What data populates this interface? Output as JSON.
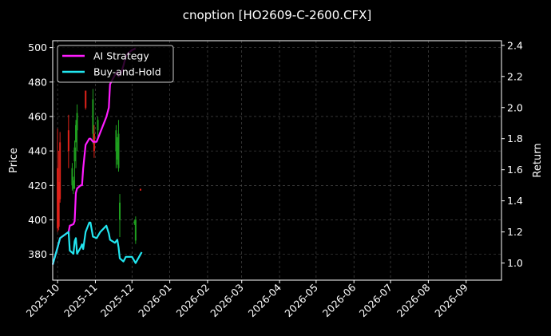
{
  "chart_data": {
    "type": "line",
    "title": "cnoption [HO2609-C-2600.CFX]",
    "ylabel": "Price",
    "y2label": "Return",
    "xlim": [
      "2025-09-27",
      "2026-09-30"
    ],
    "ylim": [
      365,
      504
    ],
    "y2lim": [
      0.89,
      2.43
    ],
    "x_ticks": [
      "2025-10",
      "2025-11",
      "2025-12",
      "2026-01",
      "2026-02",
      "2026-03",
      "2026-04",
      "2026-05",
      "2026-06",
      "2026-07",
      "2026-08",
      "2026-09"
    ],
    "y_ticks": [
      380,
      400,
      420,
      440,
      460,
      480,
      500
    ],
    "y2_ticks": [
      1.0,
      1.2,
      1.4,
      1.6,
      1.8,
      2.0,
      2.2,
      2.4
    ],
    "grid": true,
    "legend_position": "top-left",
    "colors": {
      "background": "#000000",
      "strategy": "#ff1cff",
      "benchmark": "#22e6f0",
      "up": "#1f9e1f",
      "down": "#e0221a",
      "grid": "#555555"
    },
    "candles": [
      {
        "date": "2025-10-01",
        "open": 430,
        "high": 453,
        "low": 393,
        "close": 395
      },
      {
        "date": "2025-10-02",
        "open": 422,
        "high": 440,
        "low": 394,
        "close": 396
      },
      {
        "date": "2025-10-03",
        "open": 445,
        "high": 451,
        "low": 410,
        "close": 412
      },
      {
        "date": "2025-10-10",
        "open": 452,
        "high": 461,
        "low": 430,
        "close": 440
      },
      {
        "date": "2025-10-13",
        "open": 420,
        "high": 433,
        "low": 417,
        "close": 430
      },
      {
        "date": "2025-10-14",
        "open": 418,
        "high": 425,
        "low": 415,
        "close": 423
      },
      {
        "date": "2025-10-15",
        "open": 434,
        "high": 446,
        "low": 418,
        "close": 442
      },
      {
        "date": "2025-10-16",
        "open": 445,
        "high": 458,
        "low": 430,
        "close": 455
      },
      {
        "date": "2025-10-17",
        "open": 452,
        "high": 467,
        "low": 440,
        "close": 462
      },
      {
        "date": "2025-10-24",
        "open": 475,
        "high": 475,
        "low": 464,
        "close": 465
      },
      {
        "date": "2025-10-30",
        "open": 450,
        "high": 476,
        "low": 444,
        "close": 470
      },
      {
        "date": "2025-10-31",
        "open": 450,
        "high": 455,
        "low": 436,
        "close": 440
      },
      {
        "date": "2025-11-03",
        "open": 452,
        "high": 460,
        "low": 448,
        "close": 458
      },
      {
        "date": "2025-11-18",
        "open": 440,
        "high": 455,
        "low": 430,
        "close": 452
      },
      {
        "date": "2025-11-19",
        "open": 435,
        "high": 448,
        "low": 432,
        "close": 445
      },
      {
        "date": "2025-11-20",
        "open": 430,
        "high": 458,
        "low": 428,
        "close": 450
      },
      {
        "date": "2025-11-21",
        "open": 400,
        "high": 415,
        "low": 390,
        "close": 410
      },
      {
        "date": "2025-12-03",
        "open": 398,
        "high": 400,
        "low": 397,
        "close": 399
      },
      {
        "date": "2025-12-04",
        "open": 388,
        "high": 402,
        "low": 386,
        "close": 400
      },
      {
        "date": "2025-12-08",
        "open": 418,
        "high": 418,
        "low": 417,
        "close": 417
      }
    ],
    "series": [
      {
        "name": "AI Strategy",
        "color": "#ff1cff",
        "points": [
          [
            "2025-09-27",
            0.99
          ],
          [
            "2025-10-01",
            1.1
          ],
          [
            "2025-10-03",
            1.16
          ],
          [
            "2025-10-10",
            1.2
          ],
          [
            "2025-10-11",
            1.24
          ],
          [
            "2025-10-14",
            1.25
          ],
          [
            "2025-10-15",
            1.27
          ],
          [
            "2025-10-16",
            1.45
          ],
          [
            "2025-10-17",
            1.48
          ],
          [
            "2025-10-20",
            1.5
          ],
          [
            "2025-10-21",
            1.5
          ],
          [
            "2025-10-22",
            1.61
          ],
          [
            "2025-10-24",
            1.76
          ],
          [
            "2025-10-27",
            1.8
          ],
          [
            "2025-10-28",
            1.8
          ],
          [
            "2025-10-30",
            1.78
          ],
          [
            "2025-11-02",
            1.78
          ],
          [
            "2025-11-05",
            1.84
          ],
          [
            "2025-11-10",
            1.94
          ],
          [
            "2025-11-12",
            2.0
          ],
          [
            "2025-11-13",
            2.15
          ],
          [
            "2025-11-17",
            2.21
          ],
          [
            "2025-11-19",
            2.23
          ],
          [
            "2025-11-20",
            2.2
          ],
          [
            "2025-11-22",
            2.22
          ],
          [
            "2025-11-24",
            2.27
          ],
          [
            "2025-11-26",
            2.33
          ],
          [
            "2025-11-28",
            2.35
          ],
          [
            "2025-12-01",
            2.37
          ],
          [
            "2025-12-04",
            2.38
          ]
        ]
      },
      {
        "name": "Buy-and-Hold",
        "color": "#22e6f0",
        "points": [
          [
            "2025-09-27",
            0.99
          ],
          [
            "2025-10-01",
            1.1
          ],
          [
            "2025-10-03",
            1.16
          ],
          [
            "2025-10-10",
            1.2
          ],
          [
            "2025-10-11",
            1.08
          ],
          [
            "2025-10-14",
            1.06
          ],
          [
            "2025-10-15",
            1.14
          ],
          [
            "2025-10-16",
            1.16
          ],
          [
            "2025-10-17",
            1.06
          ],
          [
            "2025-10-20",
            1.1
          ],
          [
            "2025-10-21",
            1.12
          ],
          [
            "2025-10-22",
            1.09
          ],
          [
            "2025-10-24",
            1.2
          ],
          [
            "2025-10-27",
            1.26
          ],
          [
            "2025-10-28",
            1.26
          ],
          [
            "2025-10-30",
            1.17
          ],
          [
            "2025-11-02",
            1.16
          ],
          [
            "2025-11-05",
            1.2
          ],
          [
            "2025-11-10",
            1.24
          ],
          [
            "2025-11-12",
            1.19
          ],
          [
            "2025-11-13",
            1.15
          ],
          [
            "2025-11-17",
            1.13
          ],
          [
            "2025-11-19",
            1.15
          ],
          [
            "2025-11-20",
            1.1
          ],
          [
            "2025-11-21",
            1.03
          ],
          [
            "2025-11-24",
            1.01
          ],
          [
            "2025-11-26",
            1.04
          ],
          [
            "2025-12-01",
            1.04
          ],
          [
            "2025-12-04",
            1.0
          ],
          [
            "2025-12-09",
            1.07
          ]
        ]
      }
    ]
  }
}
